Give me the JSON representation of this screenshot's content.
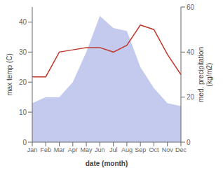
{
  "chart_data": {
    "type": "line",
    "xlabel": "date (month)",
    "ylabel": "max temp (C)",
    "y2label": "med. precipitation\n(kg/m2)",
    "categories": [
      "Jan",
      "Feb",
      "Mar",
      "Apr",
      "May",
      "Jun",
      "Jul",
      "Aug",
      "Sep",
      "Oct",
      "Nov",
      "Dec"
    ],
    "series": [
      {
        "type": "area",
        "color": "#b0b8e8",
        "values": [
          13,
          15,
          15,
          20,
          30,
          42,
          38,
          37,
          25,
          18,
          13,
          12
        ]
      },
      {
        "type": "line",
        "color": "#c0392b",
        "axis": "y2",
        "values": [
          29,
          29,
          40,
          41,
          42,
          42,
          40,
          43,
          52,
          50,
          39,
          30
        ]
      }
    ],
    "ylim": [
      0,
      45
    ],
    "yticks": [
      0,
      10,
      20,
      30,
      40
    ],
    "y2lim": [
      0,
      60
    ],
    "y2ticks": [
      0,
      20,
      40,
      60
    ],
    "grid": false
  }
}
